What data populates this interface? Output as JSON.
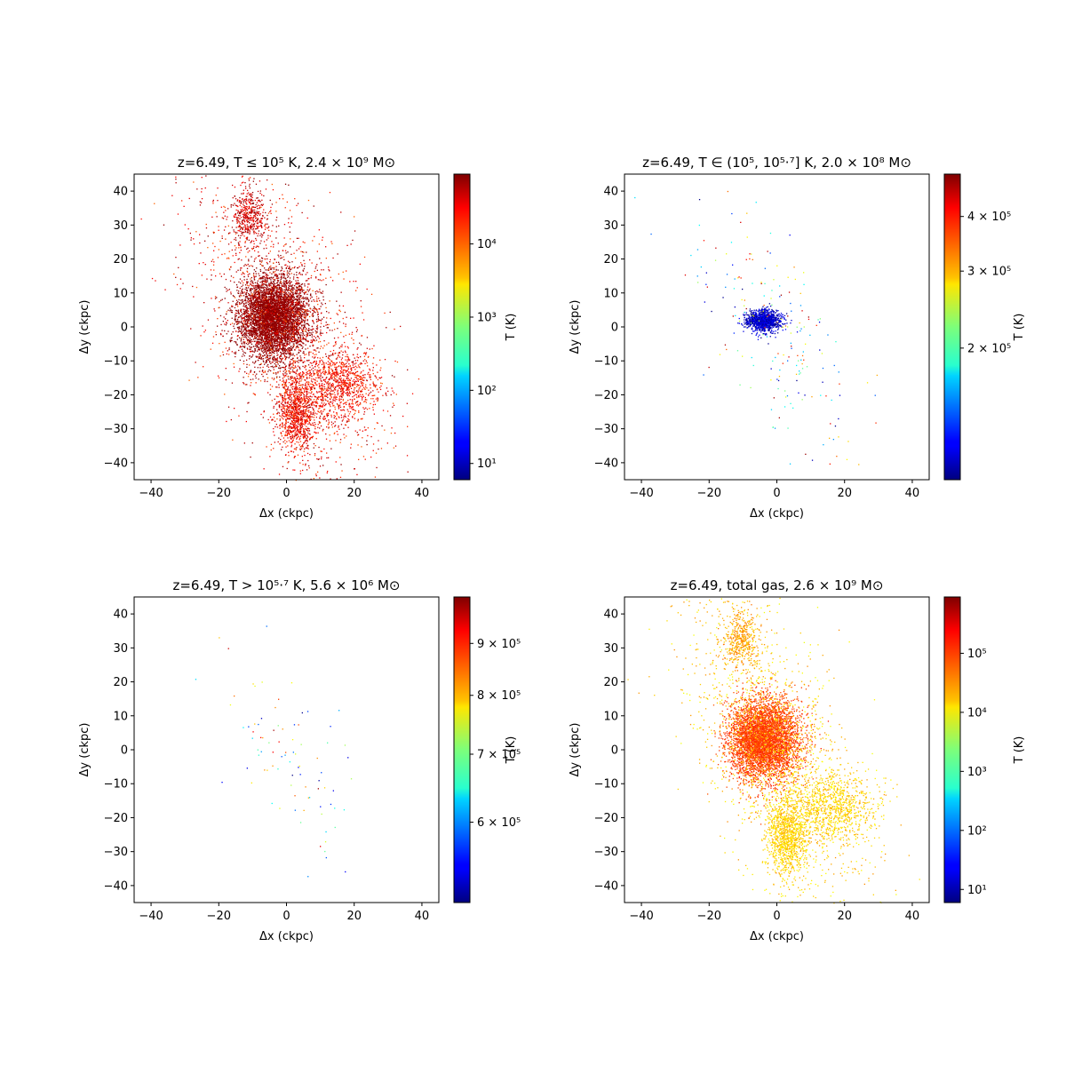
{
  "chart_data": [
    {
      "type": "scatter",
      "title": "z=6.49, T ≤ 10⁵ K, 2.4 × 10⁹ M⊙",
      "xlabel": "Δx (ckpc)",
      "ylabel": "Δy (ckpc)",
      "xlim": [
        -45,
        45
      ],
      "ylim": [
        -45,
        45
      ],
      "xticks": [
        -40,
        -20,
        0,
        20,
        40
      ],
      "yticks": [
        -40,
        -30,
        -20,
        -10,
        0,
        10,
        20,
        30,
        40
      ],
      "grid": false,
      "colorbar": {
        "label": "T (K)",
        "scale": "log",
        "range": [
          6,
          90000
        ],
        "ticks": [
          {
            "value": 10,
            "label": "10¹"
          },
          {
            "value": 100,
            "label": "10²"
          },
          {
            "value": 1000,
            "label": "10³"
          },
          {
            "value": 10000,
            "label": "10⁴"
          }
        ]
      },
      "particle_distribution": {
        "core": {
          "center": [
            -4,
            3
          ],
          "spread": [
            5,
            6
          ],
          "t_range": [
            60000,
            90000
          ],
          "weight": 0.55
        },
        "north_plume": {
          "center": [
            -11,
            33
          ],
          "spread": [
            2.5,
            4
          ],
          "t_range": [
            20000,
            90000
          ],
          "weight": 0.05
        },
        "south_tail": {
          "center": [
            3,
            -25
          ],
          "spread": [
            3,
            6
          ],
          "t_range": [
            12000,
            60000
          ],
          "weight": 0.12
        },
        "east_arm": {
          "center": [
            16,
            -17
          ],
          "spread": [
            6,
            5
          ],
          "t_range": [
            12000,
            50000
          ],
          "weight": 0.1
        },
        "halo": {
          "center": [
            0,
            0
          ],
          "spread": [
            14,
            18
          ],
          "t_range": [
            10000,
            80000
          ],
          "weight": 0.18
        }
      }
    },
    {
      "type": "scatter",
      "title": "z=6.49, T ∈ (10⁵, 10⁵·⁷] K, 2.0 × 10⁸ M⊙",
      "xlabel": "Δx (ckpc)",
      "ylabel": "Δy (ckpc)",
      "xlim": [
        -45,
        45
      ],
      "ylim": [
        -45,
        45
      ],
      "xticks": [
        -40,
        -20,
        0,
        20,
        40
      ],
      "yticks": [
        -40,
        -30,
        -20,
        -10,
        0,
        10,
        20,
        30,
        40
      ],
      "grid": false,
      "colorbar": {
        "label": "T (K)",
        "scale": "log",
        "range": [
          100000,
          500000
        ],
        "ticks": [
          {
            "value": 200000,
            "label": "2 × 10⁵"
          },
          {
            "value": 300000,
            "label": "3 × 10⁵"
          },
          {
            "value": 400000,
            "label": "4 × 10⁵"
          }
        ]
      },
      "particle_distribution": {
        "blue_clump": {
          "center": [
            -4,
            2
          ],
          "spread": [
            2.5,
            1.5
          ],
          "t_range": [
            100000,
            125000
          ],
          "weight": 0.85
        },
        "sparse_halo": {
          "center": [
            0,
            -2
          ],
          "spread": [
            12,
            14
          ],
          "t_range": [
            100000,
            480000
          ],
          "weight": 0.15
        }
      }
    },
    {
      "type": "scatter",
      "title": "z=6.49, T > 10⁵·⁷ K, 5.6 × 10⁶ M⊙",
      "xlabel": "Δx (ckpc)",
      "ylabel": "Δy (ckpc)",
      "xlim": [
        -45,
        45
      ],
      "ylim": [
        -45,
        45
      ],
      "xticks": [
        -40,
        -20,
        0,
        20,
        40
      ],
      "yticks": [
        -40,
        -30,
        -20,
        -10,
        0,
        10,
        20,
        30,
        40
      ],
      "grid": false,
      "colorbar": {
        "label": "T (K)",
        "scale": "log",
        "range": [
          500000,
          1000000
        ],
        "ticks": [
          {
            "value": 600000,
            "label": "6 × 10⁵"
          },
          {
            "value": 700000,
            "label": "7 × 10⁵"
          },
          {
            "value": 800000,
            "label": "8 × 10⁵"
          },
          {
            "value": 900000,
            "label": "9 × 10⁵"
          }
        ]
      },
      "particle_distribution": {
        "sparse_halo": {
          "center": [
            0,
            0
          ],
          "spread": [
            11,
            13
          ],
          "t_range": [
            500000,
            1000000
          ],
          "weight": 1.0
        }
      }
    },
    {
      "type": "scatter",
      "title": "z=6.49, total gas, 2.6 × 10⁹ M⊙",
      "xlabel": "Δx (ckpc)",
      "ylabel": "Δy (ckpc)",
      "xlim": [
        -45,
        45
      ],
      "ylim": [
        -45,
        45
      ],
      "xticks": [
        -40,
        -20,
        0,
        20,
        40
      ],
      "yticks": [
        -40,
        -30,
        -20,
        -10,
        0,
        10,
        20,
        30,
        40
      ],
      "grid": false,
      "colorbar": {
        "label": "T (K)",
        "scale": "log",
        "range": [
          6,
          900000
        ],
        "ticks": [
          {
            "value": 10,
            "label": "10¹"
          },
          {
            "value": 100,
            "label": "10²"
          },
          {
            "value": 1000,
            "label": "10³"
          },
          {
            "value": 10000,
            "label": "10⁴"
          },
          {
            "value": 100000,
            "label": "10⁵"
          }
        ]
      },
      "particle_distribution": {
        "core": {
          "center": [
            -4,
            3
          ],
          "spread": [
            5,
            6
          ],
          "t_range": [
            60000,
            150000
          ],
          "weight": 0.55
        },
        "north_plume": {
          "center": [
            -11,
            33
          ],
          "spread": [
            2.5,
            4
          ],
          "t_range": [
            15000,
            60000
          ],
          "weight": 0.05
        },
        "south_tail": {
          "center": [
            3,
            -25
          ],
          "spread": [
            3,
            6
          ],
          "t_range": [
            10000,
            30000
          ],
          "weight": 0.12
        },
        "east_arm": {
          "center": [
            16,
            -17
          ],
          "spread": [
            6,
            5
          ],
          "t_range": [
            10000,
            30000
          ],
          "weight": 0.1
        },
        "halo": {
          "center": [
            0,
            0
          ],
          "spread": [
            14,
            18
          ],
          "t_range": [
            8000,
            40000
          ],
          "weight": 0.18
        }
      }
    }
  ]
}
